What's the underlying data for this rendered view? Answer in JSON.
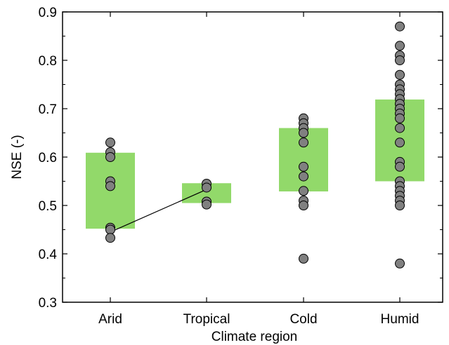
{
  "chart_data": {
    "type": "scatter",
    "xlabel": "Climate region",
    "ylabel": "NSE (-)",
    "categories": [
      "Arid",
      "Tropical",
      "Cold",
      "Humid"
    ],
    "ylim": [
      0.3,
      0.9
    ],
    "yticks": [
      "0.3",
      "0.4",
      "0.5",
      "0.6",
      "0.7",
      "0.8",
      "0.9"
    ],
    "grid": false,
    "box_color": "#92d96a",
    "marker_color": "#808080",
    "boxes": [
      {
        "category": "Arid",
        "low": 0.452,
        "high": 0.609
      },
      {
        "category": "Tropical",
        "low": 0.505,
        "high": 0.546
      },
      {
        "category": "Cold",
        "low": 0.529,
        "high": 0.66
      },
      {
        "category": "Humid",
        "low": 0.55,
        "high": 0.719
      }
    ],
    "points": [
      {
        "category": "Arid",
        "values": [
          0.63,
          0.61,
          0.6,
          0.55,
          0.54,
          0.454,
          0.45,
          0.433
        ]
      },
      {
        "category": "Tropical",
        "values": [
          0.545,
          0.537,
          0.508,
          0.502
        ]
      },
      {
        "category": "Cold",
        "values": [
          0.68,
          0.67,
          0.66,
          0.65,
          0.63,
          0.58,
          0.56,
          0.53,
          0.51,
          0.5,
          0.39
        ]
      },
      {
        "category": "Humid",
        "values": [
          0.87,
          0.83,
          0.81,
          0.8,
          0.77,
          0.75,
          0.74,
          0.73,
          0.72,
          0.71,
          0.7,
          0.69,
          0.68,
          0.66,
          0.63,
          0.59,
          0.58,
          0.55,
          0.54,
          0.53,
          0.52,
          0.51,
          0.5,
          0.38
        ]
      }
    ],
    "connector": {
      "from": {
        "category": "Arid",
        "value": 0.445
      },
      "to": {
        "category": "Tropical",
        "value": 0.533
      }
    }
  }
}
